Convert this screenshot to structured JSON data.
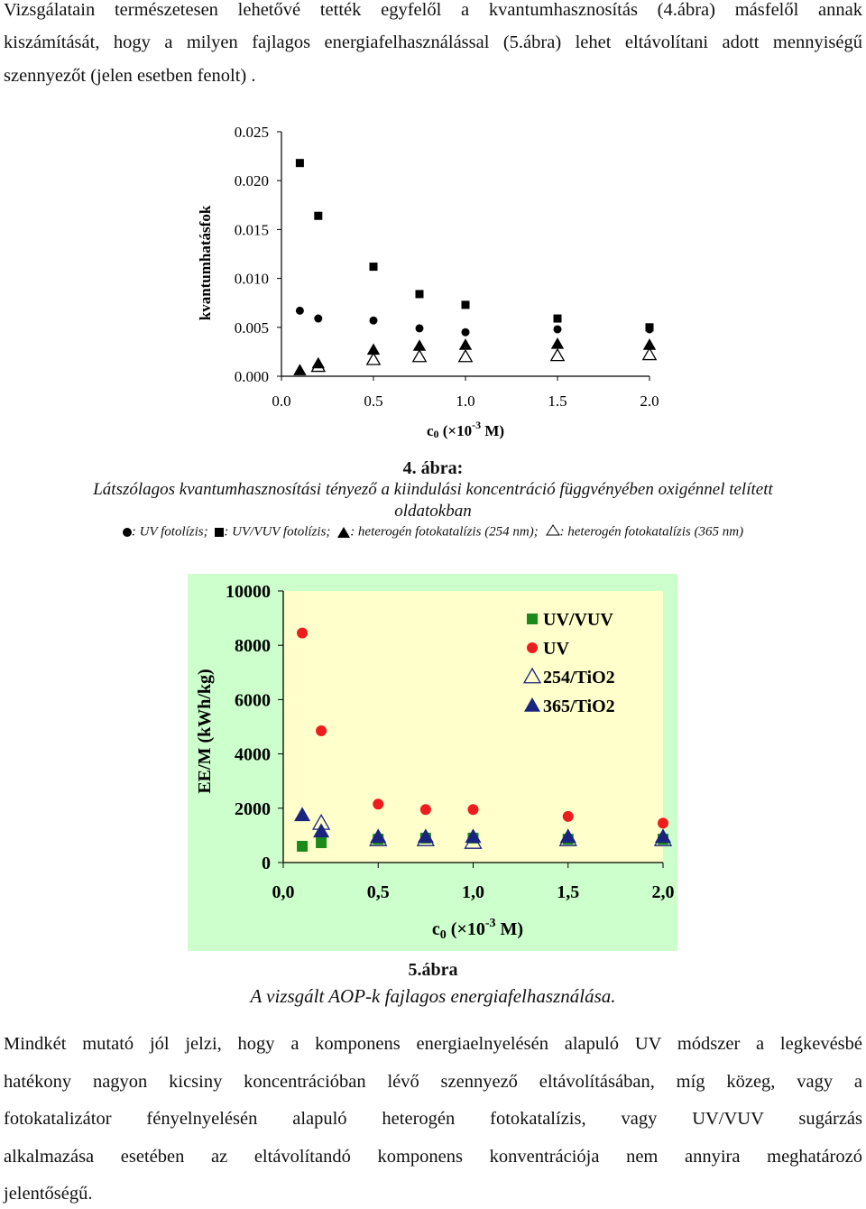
{
  "intro_lines": [
    "Vizsgálatain természetesen lehetővé tették egyfelől a kvantumhasznosítás (4.ábra) másfelől annak",
    "kiszámítását, hogy a milyen fajlagos energiafelhasználással (5.ábra) lehet eltávolítani adott mennyiségű",
    "szennyezőt (jelen esetben fenolt) ."
  ],
  "figure4": {
    "caption_title": "4. ábra:",
    "caption_line1": "Látszólagos kvantumhasznosítási tényező a kiindulási koncentráció függvényében oxigénnel telített",
    "caption_line2": "oldatokban",
    "legend_uv": ": UV fotolízis;",
    "legend_uvvuv": ": UV/VUV fotolízis;",
    "legend_254": ": heterogén fotokatalízis (254 nm);",
    "legend_365": ": heterogén fotokatalízis (365 nm)"
  },
  "figure5": {
    "caption_title": "5.ábra",
    "caption_sub": "A vizsgált AOP-k fajlagos energiafelhasználása."
  },
  "closing_lines": [
    "Mindkét mutató jól jelzi, hogy a komponens energiaelnyelésén alapuló UV módszer a legkevésbé",
    "hatékony nagyon kicsiny koncentrációban lévő szennyező eltávolításában, míg közeg, vagy a",
    "fotokatalizátor fényelnyelésén alapuló heterogén fotokatalízis, vagy UV/VUV sugárzás",
    "alkalmazása esetében az eltávolítandó komponens konventrációja nem annyira meghatározó",
    "jelentőségű."
  ],
  "chart_data": [
    {
      "type": "scatter",
      "title": "",
      "ylabel": "kvantumhatásfok",
      "xlabel_main": "c",
      "xlabel_sub": "0",
      "xlabel_unit_a": " (×10",
      "xlabel_sup": "-3",
      "xlabel_unit_b": " M)",
      "xlim": [
        0,
        2.0
      ],
      "ylim": [
        0,
        0.025
      ],
      "x_ticks": [
        "0.0",
        "0.5",
        "1.0",
        "1.5",
        "2.0"
      ],
      "y_ticks": [
        "0.000",
        "0.005",
        "0.010",
        "0.015",
        "0.020",
        "0.025"
      ],
      "series": [
        {
          "marker": "square",
          "x": [
            0.1,
            0.2,
            0.5,
            0.75,
            1.0,
            1.5,
            2.0
          ],
          "y": [
            0.0218,
            0.0164,
            0.0112,
            0.0084,
            0.0073,
            0.0059,
            0.005
          ]
        },
        {
          "marker": "circle",
          "x": [
            0.1,
            0.2,
            0.5,
            0.75,
            1.0,
            1.5,
            2.0
          ],
          "y": [
            0.0067,
            0.0059,
            0.0057,
            0.0049,
            0.0045,
            0.0048,
            0.0048
          ]
        },
        {
          "marker": "triangle-filled",
          "x": [
            0.1,
            0.2,
            0.5,
            0.75,
            1.0,
            1.5,
            2.0
          ],
          "y": [
            0.0006,
            0.0013,
            0.0027,
            0.0031,
            0.0032,
            0.0033,
            0.0032
          ]
        },
        {
          "marker": "triangle-open",
          "x": [
            0.2,
            0.5,
            0.75,
            1.0,
            1.5,
            2.0
          ],
          "y": [
            0.001,
            0.0017,
            0.002,
            0.002,
            0.0021,
            0.0022
          ]
        }
      ]
    },
    {
      "type": "scatter",
      "title": "",
      "ylabel": "EE/M (kWh/kg)",
      "xlabel_main": "c",
      "xlabel_sub": "0",
      "xlabel_unit_a": " (×10",
      "xlabel_sup": "-3",
      "xlabel_unit_b": " M)",
      "xlim": [
        0,
        2.0
      ],
      "ylim": [
        0,
        10000
      ],
      "x_ticks": [
        "0,0",
        "0,5",
        "1,0",
        "1,5",
        "2,0"
      ],
      "y_ticks": [
        "0",
        "2000",
        "4000",
        "6000",
        "8000",
        "10000"
      ],
      "background": "#ffffcc",
      "frame_background": "#ccffcc",
      "legend_position": "top-right",
      "series": [
        {
          "name": "UV/VUV",
          "marker": "square",
          "color": "#1a8a1a",
          "x": [
            0.1,
            0.2,
            0.5,
            0.75,
            1.0,
            1.5,
            2.0
          ],
          "y": [
            600,
            730,
            860,
            900,
            900,
            860,
            860
          ]
        },
        {
          "name": "UV",
          "marker": "circle",
          "color": "#ee1c1c",
          "x": [
            0.1,
            0.2,
            0.5,
            0.75,
            1.0,
            1.5,
            2.0
          ],
          "y": [
            8450,
            4850,
            2150,
            1950,
            1950,
            1700,
            1450
          ]
        },
        {
          "name": "254/TiO2",
          "marker": "triangle-open",
          "color": "#1a237e",
          "x": [
            0.2,
            0.5,
            0.75,
            1.0,
            1.5,
            2.0
          ],
          "y": [
            1450,
            850,
            850,
            750,
            850,
            850
          ]
        },
        {
          "name": "365/TiO2",
          "marker": "triangle-filled",
          "color": "#1a237e",
          "x": [
            0.1,
            0.2,
            0.5,
            0.75,
            1.0,
            1.5,
            2.0
          ],
          "y": [
            1750,
            1150,
            950,
            950,
            950,
            950,
            950
          ]
        }
      ]
    }
  ]
}
